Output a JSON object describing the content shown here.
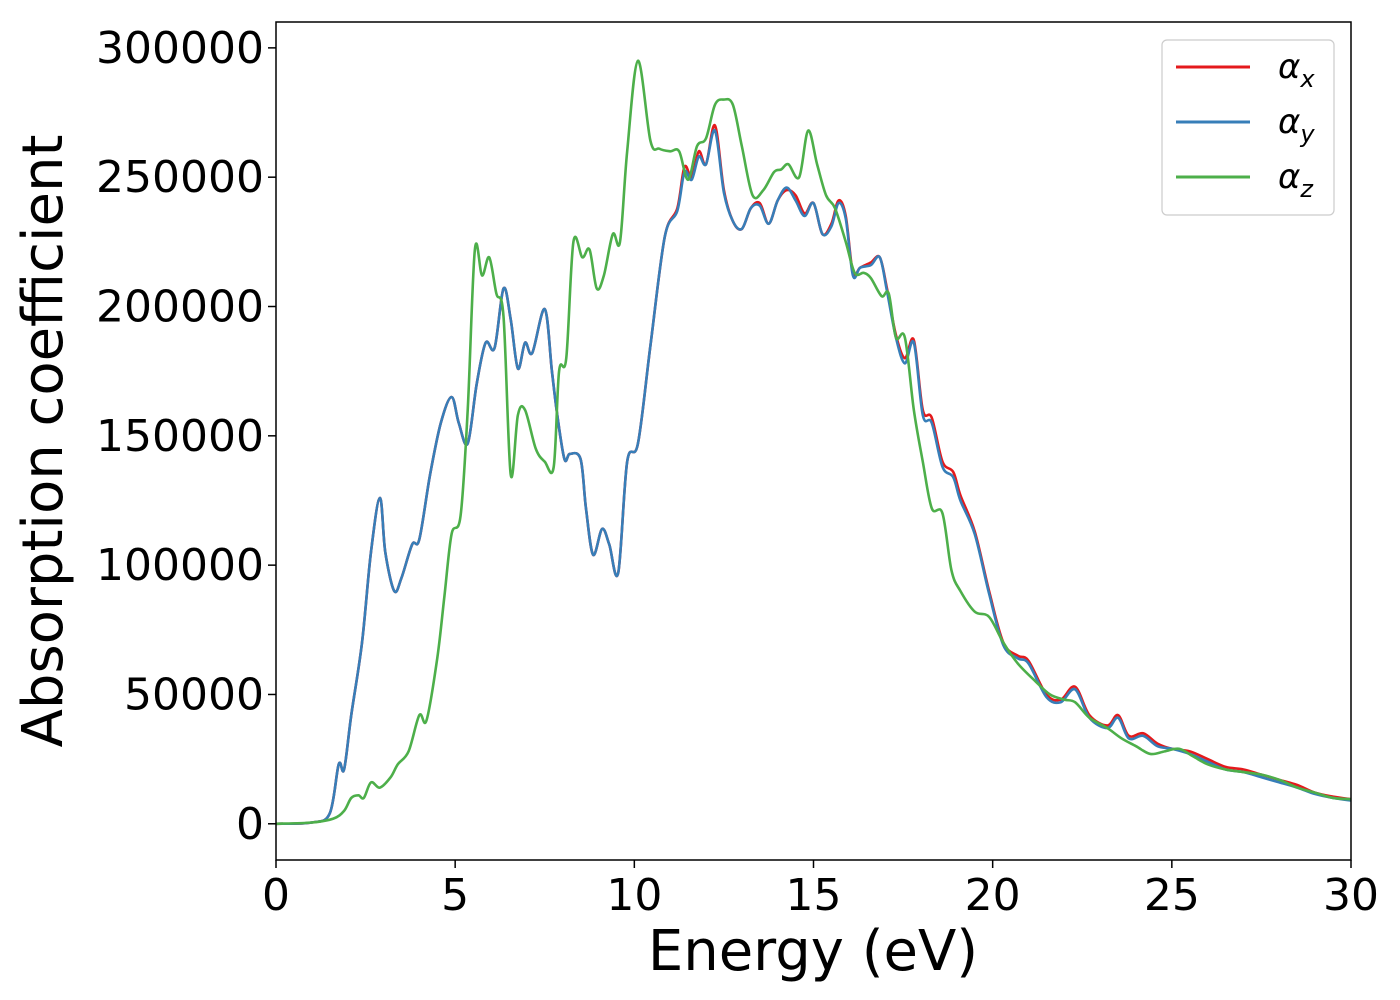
{
  "chart_data": {
    "type": "line",
    "xlabel": "Energy (eV)",
    "ylabel": "Absorption coefficient",
    "xlim": [
      0,
      30
    ],
    "ylim": [
      -14000,
      310000
    ],
    "xticks": [
      0,
      5,
      10,
      15,
      20,
      25,
      30
    ],
    "xtick_labels": [
      "0",
      "5",
      "10",
      "15",
      "20",
      "25",
      "30"
    ],
    "yticks": [
      0,
      50000,
      100000,
      150000,
      200000,
      250000,
      300000
    ],
    "ytick_labels": [
      "0",
      "50000",
      "100000",
      "150000",
      "200000",
      "250000",
      "300000"
    ],
    "grid": false,
    "legend_position": "top-right",
    "series": [
      {
        "name": "αx",
        "legend_base": "α",
        "legend_sub": "x",
        "color": "#e41a1c",
        "x": [
          0,
          1,
          1.5,
          1.75,
          1.9,
          2.1,
          2.4,
          2.65,
          2.9,
          3.05,
          3.3,
          3.5,
          3.8,
          4.0,
          4.3,
          4.6,
          4.9,
          5.1,
          5.35,
          5.6,
          5.85,
          6.1,
          6.35,
          6.55,
          6.75,
          6.95,
          7.15,
          7.5,
          7.7,
          7.85,
          8.05,
          8.2,
          8.5,
          8.65,
          8.85,
          9.1,
          9.3,
          9.55,
          9.8,
          10.1,
          10.45,
          10.85,
          11.2,
          11.4,
          11.6,
          11.8,
          12.0,
          12.25,
          12.5,
          12.75,
          13.0,
          13.25,
          13.5,
          13.75,
          14.0,
          14.25,
          14.5,
          14.75,
          15.0,
          15.25,
          15.5,
          15.7,
          15.9,
          16.1,
          16.3,
          16.6,
          16.85,
          17.05,
          17.3,
          17.55,
          17.8,
          18.05,
          18.3,
          18.6,
          18.9,
          19.1,
          19.5,
          19.9,
          20.3,
          20.7,
          21.0,
          21.5,
          21.9,
          22.3,
          22.7,
          23.2,
          23.5,
          23.8,
          24.2,
          24.6,
          25.0,
          25.5,
          26.0,
          26.5,
          27.0,
          27.5,
          28.0,
          28.5,
          29.0,
          29.5,
          30.0
        ],
        "y": [
          0,
          500,
          4000,
          23000,
          21000,
          42000,
          70000,
          105000,
          126000,
          105000,
          90000,
          95000,
          108000,
          110000,
          135000,
          155000,
          165000,
          155000,
          147000,
          170000,
          186000,
          184000,
          207000,
          195000,
          176000,
          186000,
          182000,
          199000,
          175000,
          158000,
          141000,
          143000,
          141000,
          122000,
          104000,
          114000,
          108000,
          97000,
          140000,
          147000,
          185000,
          227000,
          238000,
          254000,
          250000,
          260000,
          255000,
          270000,
          245000,
          233000,
          230000,
          238000,
          240000,
          232000,
          241000,
          245000,
          243000,
          236000,
          240000,
          228000,
          232000,
          241000,
          235000,
          213000,
          215000,
          217000,
          219000,
          207000,
          189000,
          180000,
          187000,
          160000,
          157000,
          140000,
          136000,
          127000,
          113000,
          90000,
          70000,
          65000,
          63000,
          50000,
          48000,
          53000,
          42000,
          38000,
          42000,
          34000,
          35000,
          31000,
          29000,
          28000,
          25000,
          22000,
          21000,
          19000,
          17000,
          15000,
          12000,
          10500,
          9500
        ]
      },
      {
        "name": "αy",
        "legend_base": "α",
        "legend_sub": "y",
        "color": "#377eb8",
        "x": [
          0,
          1,
          1.5,
          1.75,
          1.9,
          2.1,
          2.4,
          2.65,
          2.9,
          3.05,
          3.3,
          3.5,
          3.8,
          4.0,
          4.3,
          4.6,
          4.9,
          5.1,
          5.35,
          5.6,
          5.85,
          6.1,
          6.35,
          6.55,
          6.75,
          6.95,
          7.15,
          7.5,
          7.7,
          7.85,
          8.05,
          8.2,
          8.5,
          8.65,
          8.85,
          9.1,
          9.3,
          9.55,
          9.8,
          10.1,
          10.45,
          10.85,
          11.2,
          11.4,
          11.6,
          11.8,
          12.0,
          12.25,
          12.5,
          12.75,
          13.0,
          13.25,
          13.5,
          13.75,
          14.0,
          14.25,
          14.5,
          14.75,
          15.0,
          15.25,
          15.5,
          15.7,
          15.9,
          16.1,
          16.3,
          16.6,
          16.85,
          17.05,
          17.3,
          17.55,
          17.8,
          18.05,
          18.3,
          18.6,
          18.9,
          19.1,
          19.5,
          19.9,
          20.3,
          20.7,
          21.0,
          21.5,
          21.9,
          22.3,
          22.7,
          23.2,
          23.5,
          23.8,
          24.2,
          24.6,
          25.0,
          25.5,
          26.0,
          26.5,
          27.0,
          27.5,
          28.0,
          28.5,
          29.0,
          29.5,
          30.0
        ],
        "y": [
          0,
          500,
          4000,
          23000,
          21000,
          42000,
          70000,
          105000,
          126000,
          105000,
          90000,
          95000,
          108000,
          110000,
          135000,
          155000,
          165000,
          155000,
          147000,
          170000,
          186000,
          184000,
          207000,
          195000,
          176000,
          186000,
          182000,
          199000,
          175000,
          158000,
          141000,
          143000,
          141000,
          122000,
          104000,
          114000,
          108000,
          97000,
          140000,
          147000,
          185000,
          227000,
          237000,
          252000,
          249000,
          258000,
          255000,
          268000,
          244000,
          233000,
          230000,
          238000,
          239000,
          232000,
          241000,
          246000,
          241000,
          235000,
          240000,
          228000,
          231000,
          240000,
          234000,
          212000,
          215000,
          216000,
          219000,
          206000,
          188000,
          178000,
          186000,
          158000,
          155000,
          138000,
          134000,
          125000,
          112000,
          89000,
          69000,
          64000,
          62000,
          49000,
          47000,
          52000,
          41000,
          37000,
          41000,
          33000,
          34000,
          30000,
          29000,
          27000,
          24000,
          21000,
          20000,
          18000,
          16000,
          14000,
          11500,
          10000,
          9000
        ]
      },
      {
        "name": "αz",
        "legend_base": "α",
        "legend_sub": "z",
        "color": "#4daf4a",
        "x": [
          0,
          1,
          1.6,
          1.9,
          2.1,
          2.3,
          2.45,
          2.65,
          2.9,
          3.2,
          3.4,
          3.7,
          4.0,
          4.2,
          4.5,
          4.7,
          4.9,
          5.15,
          5.35,
          5.55,
          5.75,
          5.95,
          6.15,
          6.35,
          6.55,
          6.75,
          6.95,
          7.25,
          7.5,
          7.75,
          7.9,
          8.1,
          8.3,
          8.55,
          8.75,
          8.95,
          9.15,
          9.4,
          9.6,
          9.8,
          10.1,
          10.45,
          10.7,
          11.0,
          11.25,
          11.5,
          11.75,
          12.0,
          12.25,
          12.5,
          12.75,
          13.0,
          13.3,
          13.6,
          13.9,
          14.1,
          14.3,
          14.6,
          14.85,
          15.1,
          15.35,
          15.6,
          15.9,
          16.15,
          16.4,
          16.6,
          16.9,
          17.1,
          17.3,
          17.55,
          17.8,
          18.05,
          18.3,
          18.6,
          18.85,
          19.1,
          19.5,
          19.9,
          20.3,
          20.7,
          21.2,
          21.6,
          22.0,
          22.3,
          22.7,
          23.2,
          23.6,
          24.0,
          24.4,
          24.8,
          25.2,
          25.6,
          26.0,
          26.5,
          27.0,
          27.5,
          28.0,
          28.5,
          29.0,
          29.5,
          30.0
        ],
        "y": [
          0,
          500,
          2000,
          5000,
          10000,
          11000,
          10000,
          16000,
          14000,
          18000,
          23000,
          28000,
          42000,
          40000,
          64000,
          88000,
          112000,
          119000,
          160000,
          222000,
          212000,
          219000,
          205000,
          196000,
          135000,
          158000,
          160000,
          145000,
          140000,
          138000,
          175000,
          180000,
          225000,
          219000,
          222000,
          207000,
          212000,
          228000,
          225000,
          260000,
          295000,
          264000,
          261000,
          260000,
          260000,
          249000,
          262000,
          265000,
          278000,
          280000,
          278000,
          262000,
          243000,
          245000,
          252000,
          253000,
          255000,
          250000,
          268000,
          255000,
          243000,
          238000,
          225000,
          213000,
          213000,
          211000,
          204000,
          205000,
          188000,
          188000,
          160000,
          140000,
          122000,
          120000,
          98000,
          90000,
          82000,
          80000,
          70000,
          62000,
          55000,
          50000,
          48000,
          47000,
          41000,
          37000,
          33000,
          30000,
          27000,
          28000,
          29000,
          26000,
          23000,
          21000,
          20000,
          19000,
          17000,
          14000,
          12000,
          10000,
          9500
        ]
      }
    ]
  }
}
